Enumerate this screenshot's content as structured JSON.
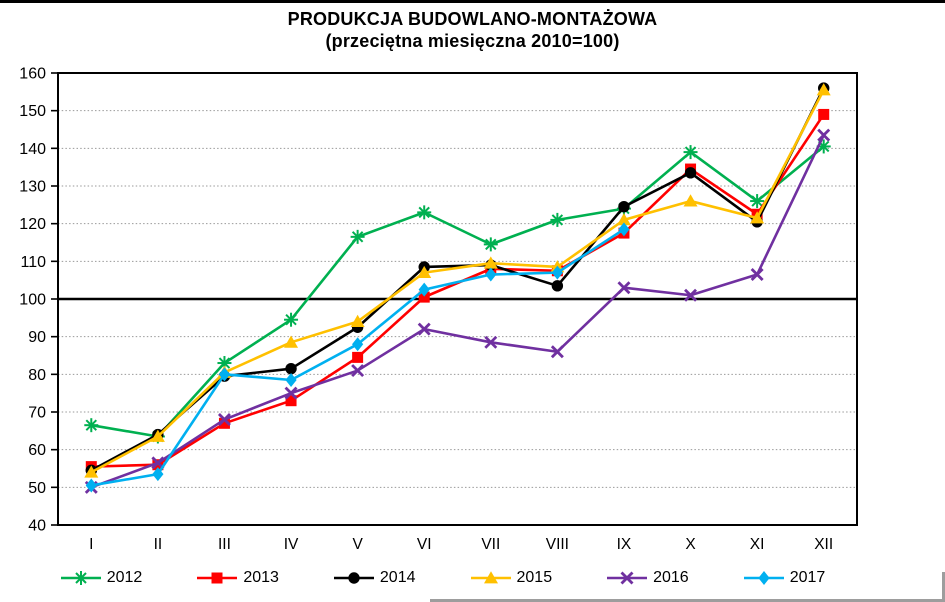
{
  "title": {
    "line1": "PRODUKCJA BUDOWLANO-MONTAŻOWA",
    "line2": "(przeciętna miesięczna 2010=100)"
  },
  "chart_data": {
    "type": "line",
    "title": "PRODUKCJA BUDOWLANO-MONTAŻOWA",
    "subtitle": "(przeciętna miesięczna 2010=100)",
    "categories": [
      "I",
      "II",
      "III",
      "IV",
      "V",
      "VI",
      "VII",
      "VIII",
      "IX",
      "X",
      "XI",
      "XII"
    ],
    "ylim": [
      40,
      160
    ],
    "ytick_step": 10,
    "baseline_value": 100,
    "grid": "dotted horizontal, solid black line at 100",
    "legend_position": "bottom",
    "axis_color": "#000000",
    "gridline_color": "#9a9a9a",
    "series": [
      {
        "name": "2012",
        "color": "#00B050",
        "marker": "asterisk",
        "values": [
          66.5,
          63.5,
          83,
          94.5,
          116.5,
          123,
          114.5,
          121,
          124,
          139,
          126,
          140.5
        ]
      },
      {
        "name": "2013",
        "color": "#FF0000",
        "marker": "square",
        "values": [
          55.5,
          56,
          67,
          73,
          84.5,
          100.5,
          108,
          107.5,
          117.5,
          134.5,
          122.5,
          149
        ]
      },
      {
        "name": "2014",
        "color": "#000000",
        "marker": "circle",
        "values": [
          54.5,
          64,
          79.5,
          81.5,
          92.5,
          108.5,
          109,
          103.5,
          124.5,
          133.5,
          120.5,
          156
        ]
      },
      {
        "name": "2015",
        "color": "#FFC000",
        "marker": "triangle",
        "values": [
          54,
          63.5,
          80.5,
          88.5,
          94,
          107,
          109.5,
          108.5,
          121,
          126,
          121.5,
          155.5
        ]
      },
      {
        "name": "2016",
        "color": "#7030A0",
        "marker": "x",
        "values": [
          50,
          56.5,
          68,
          75,
          81,
          92,
          88.5,
          86,
          103,
          101,
          106.5,
          143.5
        ]
      },
      {
        "name": "2017",
        "color": "#00B0F0",
        "marker": "diamond",
        "values": [
          50.5,
          53.5,
          80,
          78.5,
          88,
          102.5,
          106.5,
          107,
          118.5,
          null,
          null,
          null
        ]
      }
    ]
  }
}
